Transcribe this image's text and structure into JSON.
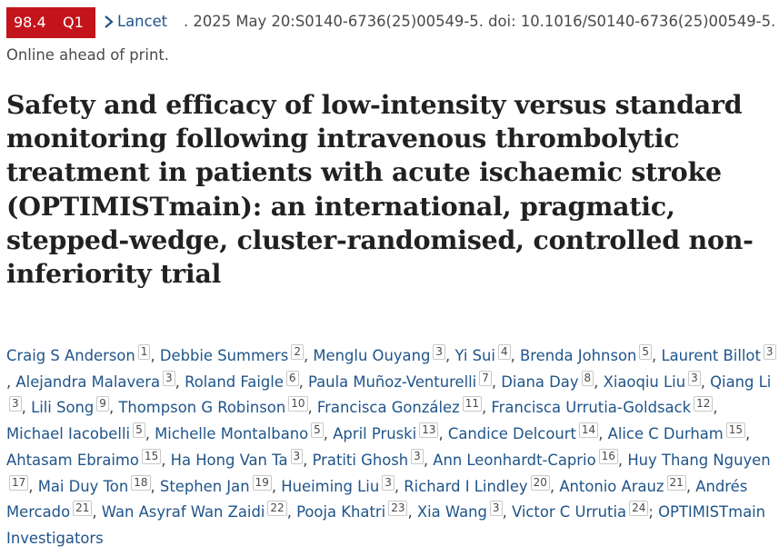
{
  "badge": {
    "impact_factor": "98.4",
    "quartile": "Q1",
    "color": "#c3141b"
  },
  "citation": {
    "journal": "Lancet",
    "rest": ". 2025 May 20:S0140-6736(25)00549-5. doi: 10.1016/S0140-6736(25)00549-5.",
    "status": "Online ahead of print."
  },
  "title": "Safety and efficacy of low-intensity versus standard monitoring following intravenous thrombolytic treatment in patients with acute ischaemic stroke (OPTIMISTmain): an international, pragmatic, stepped-wedge, cluster-randomised, controlled non-inferiority trial",
  "authors": [
    {
      "name": "Craig S Anderson",
      "aff": "1"
    },
    {
      "name": "Debbie Summers",
      "aff": "2"
    },
    {
      "name": "Menglu Ouyang",
      "aff": "3"
    },
    {
      "name": "Yi Sui",
      "aff": "4"
    },
    {
      "name": "Brenda Johnson",
      "aff": "5"
    },
    {
      "name": "Laurent Billot",
      "aff": "3"
    },
    {
      "name": "Alejandra Malavera",
      "aff": "3"
    },
    {
      "name": "Roland Faigle",
      "aff": "6"
    },
    {
      "name": "Paula Muñoz-Venturelli",
      "aff": "7"
    },
    {
      "name": "Diana Day",
      "aff": "8"
    },
    {
      "name": "Xiaoqiu Liu",
      "aff": "3"
    },
    {
      "name": "Qiang Li",
      "aff": "3"
    },
    {
      "name": "Lili Song",
      "aff": "9"
    },
    {
      "name": "Thompson G Robinson",
      "aff": "10"
    },
    {
      "name": "Francisca González",
      "aff": "11"
    },
    {
      "name": "Francisca Urrutia-Goldsack",
      "aff": "12"
    },
    {
      "name": "Michael Iacobelli",
      "aff": "5"
    },
    {
      "name": "Michelle Montalbano",
      "aff": "5"
    },
    {
      "name": "April Pruski",
      "aff": "13"
    },
    {
      "name": "Candice Delcourt",
      "aff": "14"
    },
    {
      "name": "Alice C Durham",
      "aff": "15"
    },
    {
      "name": "Ahtasam Ebraimo",
      "aff": "15"
    },
    {
      "name": "Ha Hong Van Ta",
      "aff": "3"
    },
    {
      "name": "Pratiti Ghosh",
      "aff": "3"
    },
    {
      "name": "Ann Leonhardt-Caprio",
      "aff": "16"
    },
    {
      "name": "Huy Thang Nguyen",
      "aff": "17"
    },
    {
      "name": "Mai Duy Ton",
      "aff": "18"
    },
    {
      "name": "Stephen Jan",
      "aff": "19"
    },
    {
      "name": "Hueiming Liu",
      "aff": "3"
    },
    {
      "name": "Richard I Lindley",
      "aff": "20"
    },
    {
      "name": "Antonio Arauz",
      "aff": "21"
    },
    {
      "name": "Andrés Mercado",
      "aff": "21"
    },
    {
      "name": "Wan Asyraf Wan Zaidi",
      "aff": "22"
    },
    {
      "name": "Pooja Khatri",
      "aff": "23"
    },
    {
      "name": "Xia Wang",
      "aff": "3"
    },
    {
      "name": "Victor C Urrutia",
      "aff": "24"
    }
  ],
  "group_author": "OPTIMISTmain Investigators"
}
